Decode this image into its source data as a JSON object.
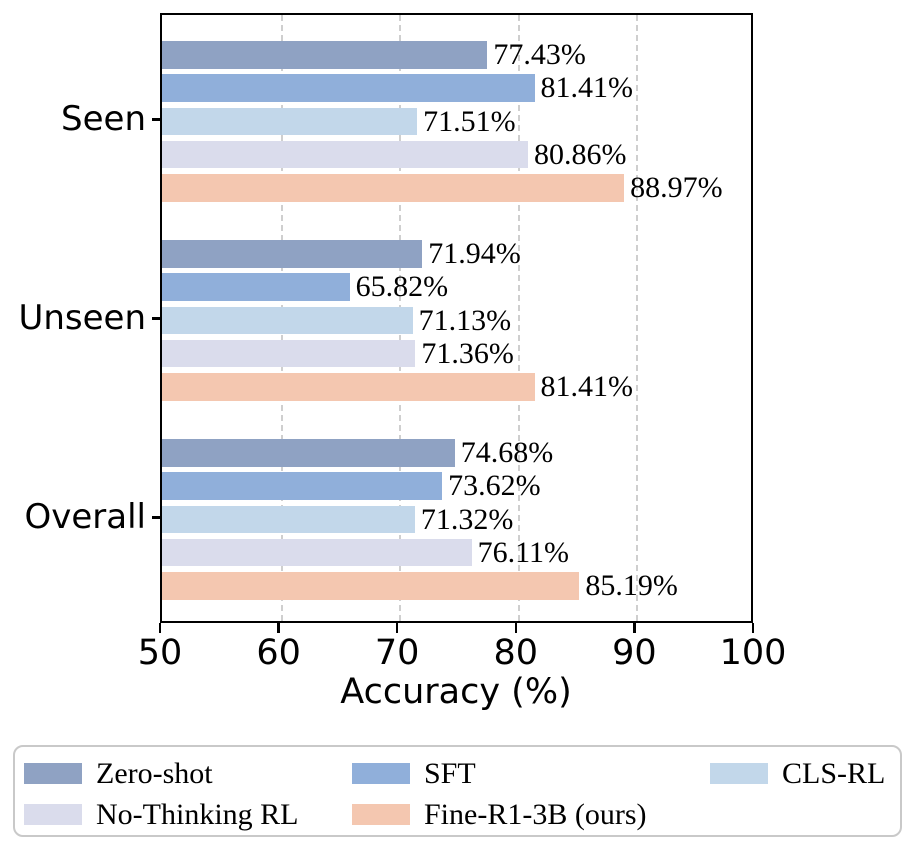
{
  "chart_data": {
    "type": "bar",
    "orientation": "horizontal",
    "title": "",
    "xlabel": "Accuracy (%)",
    "ylabel": "",
    "xlim": [
      50,
      100
    ],
    "xticks": [
      "50",
      "60",
      "70",
      "80",
      "90",
      "100"
    ],
    "grid": "vertical dashed at 60,70,80,90",
    "legend_position": "bottom box, 3 columns",
    "categories": [
      "Seen",
      "Unseen",
      "Overall"
    ],
    "series": [
      {
        "name": "Zero-shot",
        "color": "#8FA2C3",
        "values": [
          77.43,
          71.94,
          74.68
        ],
        "labels": [
          "77.43%",
          "71.94%",
          "74.68%"
        ]
      },
      {
        "name": "SFT",
        "color": "#90AFDA",
        "values": [
          81.41,
          65.82,
          73.62
        ],
        "labels": [
          "81.41%",
          "65.82%",
          "73.62%"
        ]
      },
      {
        "name": "CLS-RL",
        "color": "#C2D7EA",
        "values": [
          71.51,
          71.13,
          71.32
        ],
        "labels": [
          "71.51%",
          "71.13%",
          "71.32%"
        ]
      },
      {
        "name": "No-Thinking RL",
        "color": "#DADCEC",
        "values": [
          80.86,
          71.36,
          76.11
        ],
        "labels": [
          "80.86%",
          "71.36%",
          "76.11%"
        ]
      },
      {
        "name": "Fine-R1-3B (ours)",
        "color": "#F4C7B0",
        "values": [
          88.97,
          81.41,
          85.19
        ],
        "labels": [
          "88.97%",
          "81.41%",
          "85.19%"
        ]
      }
    ],
    "colors": {
      "grid": "#cfcfcf",
      "spine": "#000000",
      "text": "#000000",
      "legend_border": "#c9c9c9",
      "background": "#ffffff"
    }
  }
}
